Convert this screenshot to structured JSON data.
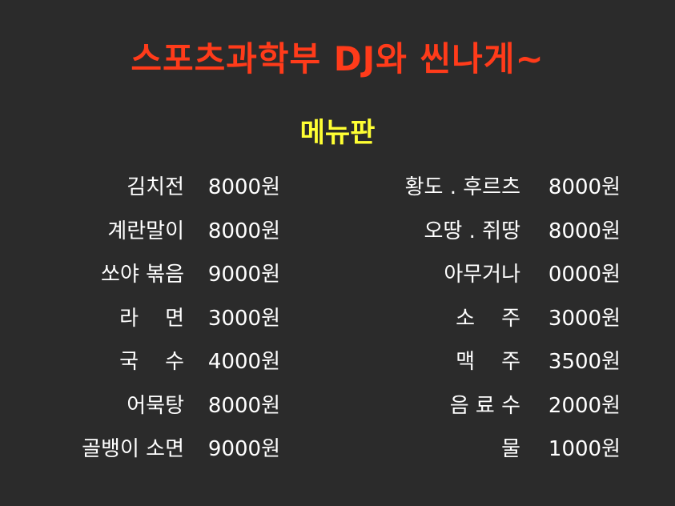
{
  "title": "스포츠과학부 DJ와 씬나게~",
  "subtitle": "메뉴판",
  "colors": {
    "background": "#2b2b2b",
    "title": "#ff3b1a",
    "subtitle": "#ffff33",
    "text": "#ffffff"
  },
  "menu_left": [
    {
      "name": "김치전",
      "price": "8000원"
    },
    {
      "name": "계란말이",
      "price": "8000원"
    },
    {
      "name": "쏘야 볶음",
      "price": "9000원"
    },
    {
      "name": "라    면",
      "price": "3000원"
    },
    {
      "name": "국    수",
      "price": "4000원"
    },
    {
      "name": "어묵탕",
      "price": "8000원"
    },
    {
      "name": "골뱅이 소면",
      "price": "9000원"
    }
  ],
  "menu_right": [
    {
      "name": "황도 . 후르츠",
      "price": "8000원"
    },
    {
      "name": "오땅 . 쥐땅",
      "price": "8000원"
    },
    {
      "name": "아무거나",
      "price": "0000원"
    },
    {
      "name": "소    주",
      "price": "3000원"
    },
    {
      "name": "맥    주",
      "price": "3500원"
    },
    {
      "name": "음 료 수",
      "price": "2000원"
    },
    {
      "name": "물",
      "price": "1000원"
    }
  ]
}
